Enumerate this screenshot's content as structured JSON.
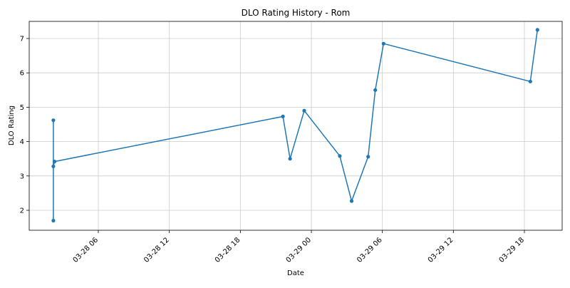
{
  "chart_data": {
    "type": "line",
    "title": "DLO Rating History - Rom",
    "xlabel": "Date",
    "ylabel": "DLO Rating",
    "x_tick_labels": [
      "03-28 06",
      "03-28 12",
      "03-28 18",
      "03-29 00",
      "03-29 06",
      "03-29 12",
      "03-29 18"
    ],
    "y_tick_labels": [
      "2",
      "3",
      "4",
      "5",
      "6",
      "7"
    ],
    "grid": true,
    "series": [
      {
        "color": "#1f77b4",
        "points": [
          {
            "x": "03-28 02:12",
            "y": 4.62
          },
          {
            "x": "03-28 02:12",
            "y": 1.7
          },
          {
            "x": "03-28 02:12",
            "y": 3.28
          },
          {
            "x": "03-28 02:18",
            "y": 3.42
          },
          {
            "x": "03-28 21:36",
            "y": 4.73
          },
          {
            "x": "03-28 22:12",
            "y": 3.5
          },
          {
            "x": "03-28 23:24",
            "y": 4.9
          },
          {
            "x": "03-29 02:24",
            "y": 3.58
          },
          {
            "x": "03-29 03:24",
            "y": 2.27
          },
          {
            "x": "03-29 04:48",
            "y": 3.56
          },
          {
            "x": "03-29 05:24",
            "y": 5.5
          },
          {
            "x": "03-29 06:06",
            "y": 6.85
          },
          {
            "x": "03-29 18:30",
            "y": 5.75
          },
          {
            "x": "03-29 19:06",
            "y": 7.25
          }
        ]
      }
    ]
  }
}
